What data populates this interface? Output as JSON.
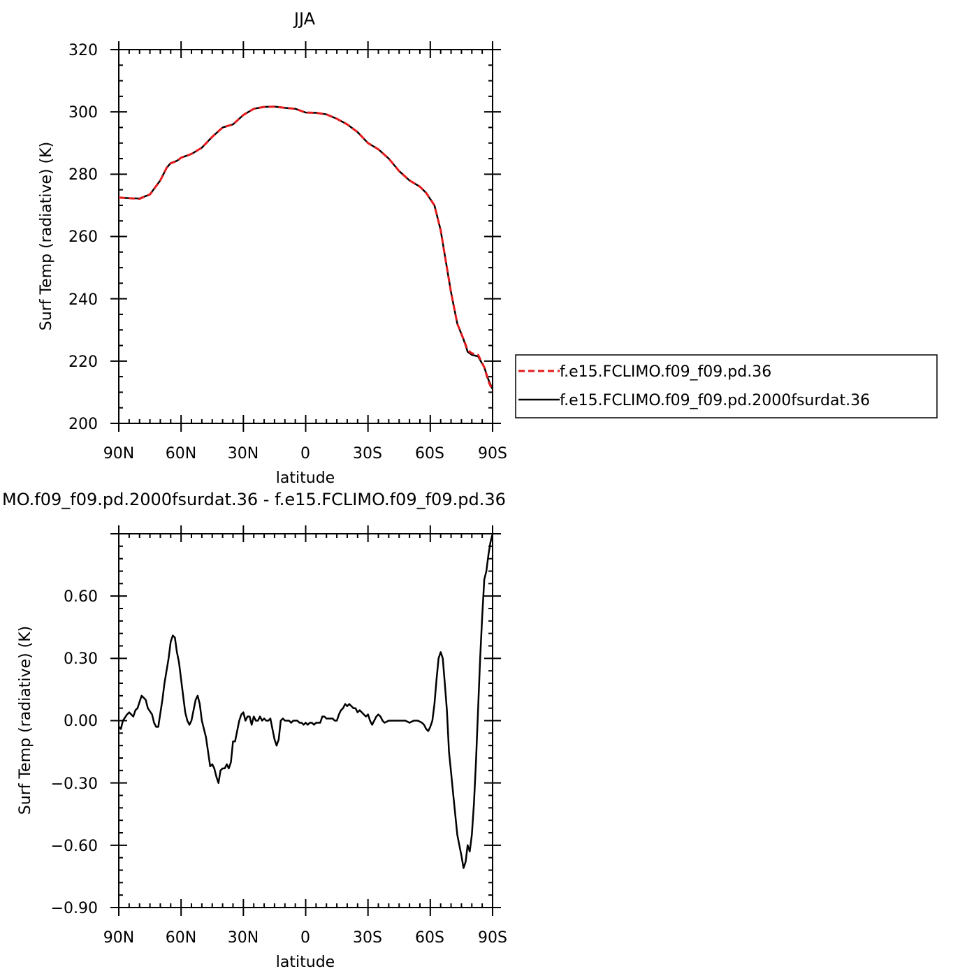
{
  "chart_data": [
    {
      "type": "line",
      "title": "JJA",
      "xlabel": "latitude",
      "ylabel": "Surf Temp (radiative) (K)",
      "xlim": [
        90,
        -90
      ],
      "ylim": [
        200,
        320
      ],
      "x_ticks": [
        90,
        60,
        30,
        0,
        -30,
        -60,
        -90
      ],
      "x_tick_labels": [
        "90N",
        "60N",
        "30N",
        "0",
        "30S",
        "60S",
        "90S"
      ],
      "y_ticks": [
        200,
        220,
        240,
        260,
        280,
        300,
        320
      ],
      "y_tick_labels": [
        "200",
        "220",
        "240",
        "260",
        "280",
        "300",
        "320"
      ],
      "legend_position": "right",
      "series": [
        {
          "name": "f.e15.FCLIMO.f09_f09.pd.36",
          "color": "#e41a1c",
          "dash": "dashed",
          "points": [
            [
              90,
              272.5
            ],
            [
              85,
              272.3
            ],
            [
              80,
              272.1
            ],
            [
              75,
              273.5
            ],
            [
              70,
              278
            ],
            [
              67,
              282
            ],
            [
              65,
              283.5
            ],
            [
              62,
              284.2
            ],
            [
              60,
              285.3
            ],
            [
              55,
              286.5
            ],
            [
              50,
              288.5
            ],
            [
              45,
              292
            ],
            [
              40,
              295
            ],
            [
              35,
              296
            ],
            [
              30,
              299
            ],
            [
              25,
              301
            ],
            [
              20,
              301.6
            ],
            [
              15,
              301.7
            ],
            [
              10,
              301.3
            ],
            [
              5,
              301
            ],
            [
              0,
              299.8
            ],
            [
              -5,
              299.7
            ],
            [
              -10,
              299.2
            ],
            [
              -15,
              297.8
            ],
            [
              -20,
              296
            ],
            [
              -25,
              293.5
            ],
            [
              -30,
              290
            ],
            [
              -35,
              288
            ],
            [
              -40,
              285
            ],
            [
              -45,
              281
            ],
            [
              -50,
              278
            ],
            [
              -55,
              276
            ],
            [
              -58,
              274
            ],
            [
              -62,
              270
            ],
            [
              -65,
              262
            ],
            [
              -68,
              250
            ],
            [
              -70,
              242
            ],
            [
              -73,
              232
            ],
            [
              -76,
              227
            ],
            [
              -78,
              223.5
            ],
            [
              -80,
              222.5
            ],
            [
              -83,
              222
            ],
            [
              -86,
              218
            ],
            [
              -88,
              213.5
            ],
            [
              -90,
              210.5
            ]
          ]
        },
        {
          "name": "f.e15.FCLIMO.f09_f09.pd.2000fsurdat.36",
          "color": "#000000",
          "dash": "solid",
          "points": [
            [
              90,
              272.5
            ],
            [
              85,
              272.3
            ],
            [
              80,
              272.2
            ],
            [
              75,
              273.5
            ],
            [
              70,
              278
            ],
            [
              67,
              282
            ],
            [
              65,
              283.6
            ],
            [
              62,
              284.3
            ],
            [
              60,
              285.3
            ],
            [
              55,
              286.5
            ],
            [
              50,
              288.5
            ],
            [
              45,
              292
            ],
            [
              40,
              295
            ],
            [
              35,
              296
            ],
            [
              30,
              299
            ],
            [
              25,
              301
            ],
            [
              20,
              301.6
            ],
            [
              15,
              301.7
            ],
            [
              10,
              301.3
            ],
            [
              5,
              301
            ],
            [
              0,
              299.8
            ],
            [
              -5,
              299.7
            ],
            [
              -10,
              299.2
            ],
            [
              -15,
              297.8
            ],
            [
              -20,
              296
            ],
            [
              -25,
              293.5
            ],
            [
              -30,
              290
            ],
            [
              -35,
              288
            ],
            [
              -40,
              285
            ],
            [
              -45,
              281
            ],
            [
              -50,
              278
            ],
            [
              -55,
              276
            ],
            [
              -58,
              274
            ],
            [
              -62,
              270
            ],
            [
              -65,
              262
            ],
            [
              -68,
              250
            ],
            [
              -70,
              242
            ],
            [
              -73,
              232
            ],
            [
              -76,
              227
            ],
            [
              -78,
              223
            ],
            [
              -80,
              222
            ],
            [
              -83,
              221.5
            ],
            [
              -86,
              218
            ],
            [
              -88,
              214
            ],
            [
              -90,
              211
            ]
          ]
        }
      ]
    },
    {
      "type": "line",
      "title": "MO.f09_f09.pd.2000fsurdat.36 - f.e15.FCLIMO.f09_f09.pd.36",
      "xlabel": "latitude",
      "ylabel": "Surf Temp (radiative) (K)",
      "xlim": [
        90,
        -90
      ],
      "ylim": [
        -0.9,
        0.9
      ],
      "x_ticks": [
        90,
        60,
        30,
        0,
        -30,
        -60,
        -90
      ],
      "x_tick_labels": [
        "90N",
        "60N",
        "30N",
        "0",
        "30S",
        "60S",
        "90S"
      ],
      "y_ticks": [
        -0.9,
        -0.6,
        -0.3,
        0.0,
        0.3,
        0.6
      ],
      "y_tick_labels": [
        "−0.90",
        "−0.60",
        "−0.30",
        "0.00",
        "0.30",
        "0.60"
      ],
      "series": [
        {
          "color": "#000000",
          "points": [
            [
              90,
              -0.03
            ],
            [
              89,
              -0.04
            ],
            [
              88,
              0.0
            ],
            [
              86,
              0.03
            ],
            [
              85,
              0.04
            ],
            [
              84,
              0.03
            ],
            [
              83,
              0.02
            ],
            [
              82,
              0.05
            ],
            [
              81,
              0.06
            ],
            [
              80,
              0.09
            ],
            [
              79,
              0.12
            ],
            [
              77,
              0.1
            ],
            [
              76,
              0.06
            ],
            [
              74,
              0.03
            ],
            [
              73,
              -0.01
            ],
            [
              72,
              -0.03
            ],
            [
              71,
              -0.03
            ],
            [
              69,
              0.1
            ],
            [
              68,
              0.18
            ],
            [
              66,
              0.3
            ],
            [
              65,
              0.38
            ],
            [
              64,
              0.41
            ],
            [
              63,
              0.4
            ],
            [
              62,
              0.33
            ],
            [
              61,
              0.28
            ],
            [
              59,
              0.12
            ],
            [
              58,
              0.04
            ],
            [
              57,
              0.0
            ],
            [
              56,
              -0.02
            ],
            [
              55,
              0.0
            ],
            [
              53,
              0.1
            ],
            [
              52,
              0.12
            ],
            [
              51,
              0.08
            ],
            [
              50,
              0.0
            ],
            [
              48,
              -0.08
            ],
            [
              47,
              -0.15
            ],
            [
              46,
              -0.22
            ],
            [
              45,
              -0.21
            ],
            [
              44,
              -0.23
            ],
            [
              43,
              -0.27
            ],
            [
              42,
              -0.3
            ],
            [
              41,
              -0.24
            ],
            [
              40,
              -0.23
            ],
            [
              39,
              -0.23
            ],
            [
              38,
              -0.21
            ],
            [
              37,
              -0.23
            ],
            [
              36,
              -0.2
            ],
            [
              35,
              -0.1
            ],
            [
              34,
              -0.1
            ],
            [
              33,
              -0.05
            ],
            [
              32,
              0.0
            ],
            [
              31,
              0.03
            ],
            [
              30,
              0.04
            ],
            [
              29,
              0.0
            ],
            [
              28,
              0.02
            ],
            [
              27,
              0.02
            ],
            [
              26,
              -0.02
            ],
            [
              25,
              0.02
            ],
            [
              24,
              0.0
            ],
            [
              23,
              0.0
            ],
            [
              22,
              0.02
            ],
            [
              21,
              0.0
            ],
            [
              20,
              0.01
            ],
            [
              19,
              0.0
            ],
            [
              18,
              0.0
            ],
            [
              17,
              0.01
            ],
            [
              16,
              -0.04
            ],
            [
              15,
              -0.09
            ],
            [
              14,
              -0.12
            ],
            [
              13,
              -0.09
            ],
            [
              12,
              0.0
            ],
            [
              11,
              0.01
            ],
            [
              10,
              0.0
            ],
            [
              9,
              0.0
            ],
            [
              8,
              0.0
            ],
            [
              7,
              -0.01
            ],
            [
              6,
              0.0
            ],
            [
              5,
              0.0
            ],
            [
              4,
              0.0
            ],
            [
              3,
              -0.01
            ],
            [
              2,
              -0.01
            ],
            [
              1,
              -0.02
            ],
            [
              0,
              -0.01
            ],
            [
              -1,
              -0.02
            ],
            [
              -2,
              -0.01
            ],
            [
              -3,
              -0.01
            ],
            [
              -4,
              -0.02
            ],
            [
              -5,
              -0.01
            ],
            [
              -6,
              -0.01
            ],
            [
              -7,
              -0.01
            ],
            [
              -8,
              0.02
            ],
            [
              -9,
              0.02
            ],
            [
              -10,
              0.01
            ],
            [
              -11,
              0.01
            ],
            [
              -12,
              0.01
            ],
            [
              -13,
              0.01
            ],
            [
              -14,
              0.0
            ],
            [
              -15,
              0.0
            ],
            [
              -16,
              0.03
            ],
            [
              -17,
              0.05
            ],
            [
              -18,
              0.06
            ],
            [
              -19,
              0.08
            ],
            [
              -20,
              0.07
            ],
            [
              -21,
              0.08
            ],
            [
              -22,
              0.07
            ],
            [
              -23,
              0.06
            ],
            [
              -24,
              0.06
            ],
            [
              -25,
              0.04
            ],
            [
              -26,
              0.05
            ],
            [
              -27,
              0.04
            ],
            [
              -28,
              0.03
            ],
            [
              -29,
              0.02
            ],
            [
              -30,
              0.03
            ],
            [
              -31,
              0.0
            ],
            [
              -32,
              -0.02
            ],
            [
              -33,
              0.0
            ],
            [
              -34,
              0.02
            ],
            [
              -35,
              0.03
            ],
            [
              -36,
              0.02
            ],
            [
              -37,
              0.0
            ],
            [
              -38,
              -0.01
            ],
            [
              -40,
              0.0
            ],
            [
              -42,
              0.0
            ],
            [
              -44,
              0.0
            ],
            [
              -46,
              0.0
            ],
            [
              -48,
              0.0
            ],
            [
              -50,
              -0.01
            ],
            [
              -52,
              0.0
            ],
            [
              -54,
              0.0
            ],
            [
              -56,
              -0.01
            ],
            [
              -57,
              -0.02
            ],
            [
              -58,
              -0.04
            ],
            [
              -59,
              -0.05
            ],
            [
              -60,
              -0.03
            ],
            [
              -61,
              0.0
            ],
            [
              -62,
              0.08
            ],
            [
              -63,
              0.2
            ],
            [
              -64,
              0.3
            ],
            [
              -65,
              0.33
            ],
            [
              -66,
              0.3
            ],
            [
              -67,
              0.18
            ],
            [
              -68,
              0.05
            ],
            [
              -69,
              -0.15
            ],
            [
              -70,
              -0.25
            ],
            [
              -71,
              -0.35
            ],
            [
              -72,
              -0.45
            ],
            [
              -73,
              -0.55
            ],
            [
              -74,
              -0.6
            ],
            [
              -75,
              -0.65
            ],
            [
              -76,
              -0.71
            ],
            [
              -77,
              -0.68
            ],
            [
              -78,
              -0.6
            ],
            [
              -79,
              -0.63
            ],
            [
              -80,
              -0.55
            ],
            [
              -81,
              -0.4
            ],
            [
              -82,
              -0.2
            ],
            [
              -83,
              0.05
            ],
            [
              -84,
              0.3
            ],
            [
              -85,
              0.5
            ],
            [
              -86,
              0.68
            ],
            [
              -87,
              0.72
            ],
            [
              -88,
              0.8
            ],
            [
              -89,
              0.86
            ],
            [
              -90,
              0.9
            ]
          ]
        }
      ]
    }
  ]
}
